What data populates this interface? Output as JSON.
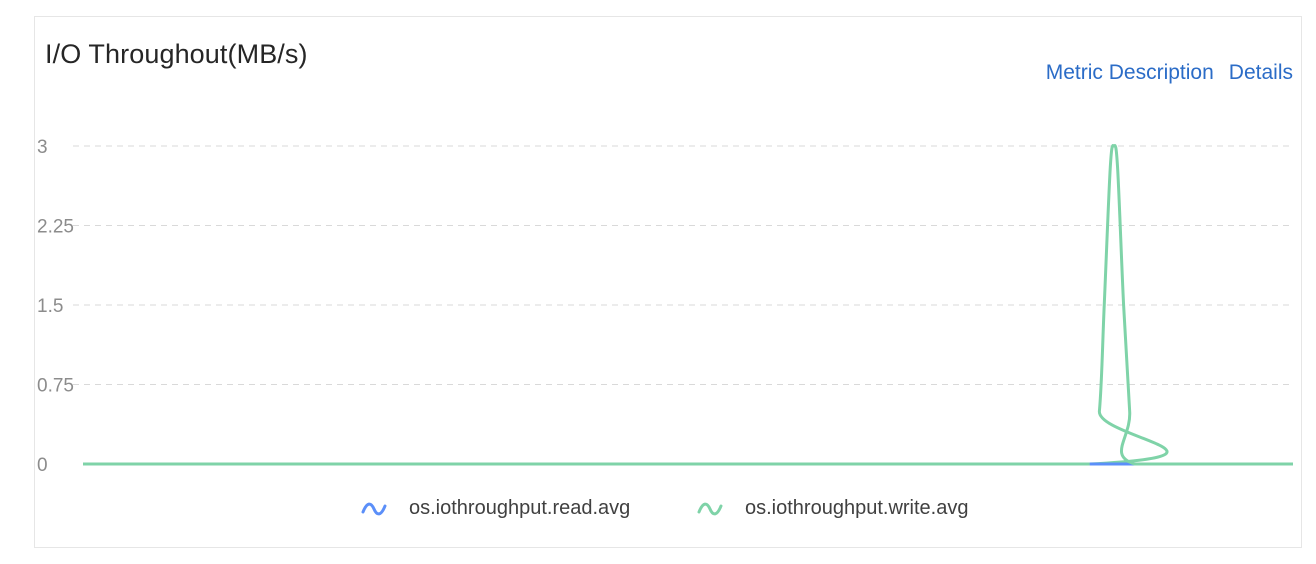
{
  "panel": {
    "title": "I/O Throughout(MB/s)",
    "links": {
      "metric_description": "Metric Description",
      "details": "Details"
    }
  },
  "colors": {
    "read": "#5b8ff9",
    "write": "#7fd3a8"
  },
  "chart_data": {
    "type": "line",
    "title": "I/O Throughout(MB/s)",
    "xlabel": "",
    "ylabel": "",
    "ylim": [
      0,
      3
    ],
    "yticks": [
      "0",
      "0.75",
      "1.5",
      "2.25",
      "3"
    ],
    "grid": true,
    "legend_position": "bottom",
    "x_range": [
      0,
      100
    ],
    "series": [
      {
        "name": "os.iothroughput.read.avg",
        "color": "#5b8ff9",
        "points": [
          [
            0,
            0
          ],
          [
            83.2,
            0
          ],
          [
            86.3,
            0
          ],
          [
            100,
            0
          ]
        ]
      },
      {
        "name": "os.iothroughput.write.avg",
        "color": "#7fd3a8",
        "points": [
          [
            0,
            0
          ],
          [
            83.2,
            0
          ],
          [
            84.0,
            0.5
          ],
          [
            84.4,
            1.5
          ],
          [
            84.9,
            2.8
          ],
          [
            85.2,
            3.0
          ],
          [
            85.5,
            2.8
          ],
          [
            86.0,
            1.5
          ],
          [
            86.5,
            0.5
          ],
          [
            86.9,
            0
          ],
          [
            100,
            0
          ]
        ]
      }
    ]
  }
}
